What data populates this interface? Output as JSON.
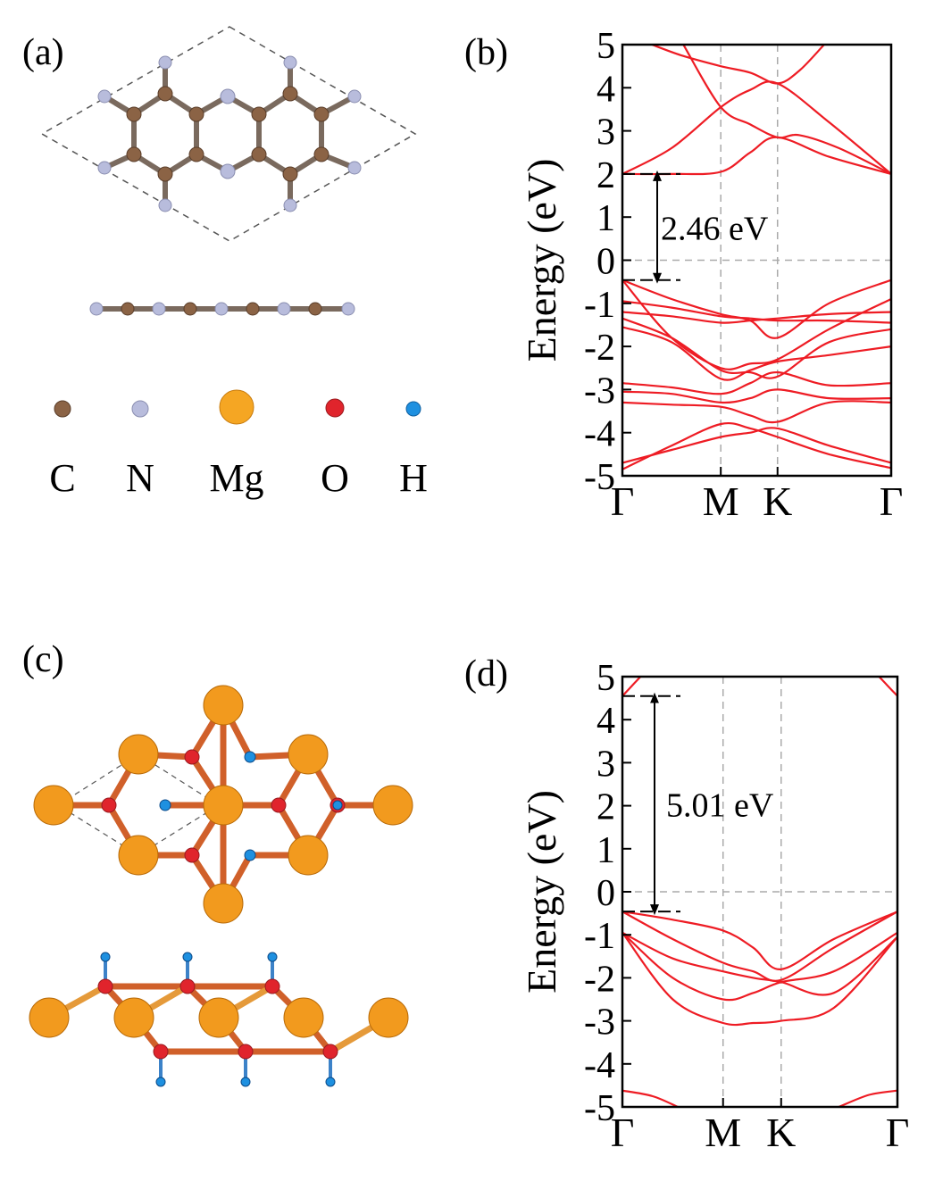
{
  "panels": {
    "a": {
      "label": "(a)"
    },
    "b": {
      "label": "(b)"
    },
    "c": {
      "label": "(c)"
    },
    "d": {
      "label": "(d)"
    }
  },
  "legend": {
    "items": [
      {
        "symbol": "C",
        "color": "#8B6345"
      },
      {
        "symbol": "N",
        "color": "#B8BCDC"
      },
      {
        "symbol": "Mg",
        "color": "#F29A1E"
      },
      {
        "symbol": "O",
        "color": "#E0242C"
      },
      {
        "symbol": "H",
        "color": "#1E90E0"
      }
    ]
  },
  "chart_data": [
    {
      "type": "line",
      "panel": "b",
      "ylabel": "Energy (eV)",
      "ylim": [
        -5,
        5
      ],
      "yticks": [
        "5",
        "4",
        "3",
        "2",
        "1",
        "0",
        "-1",
        "-2",
        "-3",
        "-4",
        "-5"
      ],
      "xticks": [
        "Γ",
        "M",
        "K",
        "Γ"
      ],
      "kpath": [
        0,
        1,
        1.577,
        2.732
      ],
      "bandgap_label": "2.46 eV",
      "bandgap": [
        -0.46,
        2.0
      ],
      "line_color": "#EE1C24",
      "bands": [
        [
          [
            0,
            -4.85
          ],
          [
            0.5,
            -4.3
          ],
          [
            1,
            -3.8
          ],
          [
            1.3,
            -3.9
          ],
          [
            1.577,
            -4.1
          ],
          [
            2.1,
            -4.5
          ],
          [
            2.732,
            -4.82
          ]
        ],
        [
          [
            0,
            -4.7
          ],
          [
            0.5,
            -4.4
          ],
          [
            1,
            -4.1
          ],
          [
            1.3,
            -4.0
          ],
          [
            1.577,
            -3.9
          ],
          [
            2.1,
            -4.3
          ],
          [
            2.732,
            -4.7
          ]
        ],
        [
          [
            0,
            -3.3
          ],
          [
            0.5,
            -3.35
          ],
          [
            1,
            -3.4
          ],
          [
            1.3,
            -3.6
          ],
          [
            1.577,
            -3.75
          ],
          [
            2.1,
            -3.3
          ],
          [
            2.732,
            -3.3
          ]
        ],
        [
          [
            0,
            -3.05
          ],
          [
            0.5,
            -3.1
          ],
          [
            1,
            -3.3
          ],
          [
            1.3,
            -3.2
          ],
          [
            1.577,
            -3.0
          ],
          [
            2.1,
            -3.2
          ],
          [
            2.732,
            -3.2
          ]
        ],
        [
          [
            0,
            -2.85
          ],
          [
            0.5,
            -2.95
          ],
          [
            1,
            -3.1
          ],
          [
            1.3,
            -2.85
          ],
          [
            1.577,
            -2.6
          ],
          [
            2.1,
            -2.9
          ],
          [
            2.732,
            -2.85
          ]
        ],
        [
          [
            0,
            -1.55
          ],
          [
            0.5,
            -1.9
          ],
          [
            1,
            -2.75
          ],
          [
            1.3,
            -2.55
          ],
          [
            1.577,
            -2.35
          ],
          [
            2.1,
            -2.2
          ],
          [
            2.732,
            -2.0
          ]
        ],
        [
          [
            0,
            -1.35
          ],
          [
            0.5,
            -1.8
          ],
          [
            1,
            -2.55
          ],
          [
            1.3,
            -2.6
          ],
          [
            1.577,
            -2.7
          ],
          [
            2.1,
            -1.9
          ],
          [
            2.732,
            -1.6
          ]
        ],
        [
          [
            0,
            -1.2
          ],
          [
            0.5,
            -1.3
          ],
          [
            1,
            -1.45
          ],
          [
            1.3,
            -1.4
          ],
          [
            1.577,
            -1.35
          ],
          [
            2.1,
            -1.25
          ],
          [
            2.732,
            -1.2
          ]
        ],
        [
          [
            0,
            -0.95
          ],
          [
            0.5,
            -1.1
          ],
          [
            1,
            -1.3
          ],
          [
            1.3,
            -1.35
          ],
          [
            1.577,
            -1.4
          ],
          [
            2.1,
            -1.4
          ],
          [
            2.732,
            -1.45
          ]
        ],
        [
          [
            0,
            -0.46
          ],
          [
            0.5,
            -1.8
          ],
          [
            1,
            -2.5
          ],
          [
            1.3,
            -2.4
          ],
          [
            1.577,
            -2.3
          ],
          [
            2.1,
            -1.6
          ],
          [
            2.732,
            -0.9
          ]
        ],
        [
          [
            0,
            -0.46
          ],
          [
            0.5,
            -0.9
          ],
          [
            1,
            -1.25
          ],
          [
            1.3,
            -1.4
          ],
          [
            1.577,
            -1.8
          ],
          [
            2.1,
            -1.0
          ],
          [
            2.732,
            -0.46
          ]
        ],
        [
          [
            0,
            2.0
          ],
          [
            0.5,
            2.0
          ],
          [
            1,
            2.05
          ],
          [
            1.3,
            2.5
          ],
          [
            1.577,
            2.85
          ],
          [
            2.1,
            2.4
          ],
          [
            2.732,
            2.0
          ]
        ],
        [
          [
            0,
            2.0
          ],
          [
            0.5,
            2.6
          ],
          [
            1,
            3.55
          ],
          [
            1.3,
            3.95
          ],
          [
            1.577,
            4.1
          ],
          [
            2.1,
            3.2
          ],
          [
            2.732,
            2.0
          ]
        ],
        [
          [
            0.62,
            5.0
          ],
          [
            1,
            3.55
          ],
          [
            1.3,
            3.15
          ],
          [
            1.577,
            2.85
          ],
          [
            1.8,
            2.9
          ],
          [
            2.2,
            2.6
          ],
          [
            2.732,
            2.0
          ]
        ],
        [
          [
            0.3,
            5.0
          ],
          [
            0.6,
            4.75
          ],
          [
            1,
            4.5
          ],
          [
            1.3,
            4.35
          ],
          [
            1.577,
            4.1
          ],
          [
            1.8,
            4.4
          ],
          [
            2.05,
            5.0
          ]
        ]
      ]
    },
    {
      "type": "line",
      "panel": "d",
      "ylabel": "Energy (eV)",
      "ylim": [
        -5,
        5
      ],
      "yticks": [
        "5",
        "4",
        "3",
        "2",
        "1",
        "0",
        "-1",
        "-2",
        "-3",
        "-4",
        "-5"
      ],
      "xticks": [
        "Γ",
        "M",
        "K",
        "Γ"
      ],
      "kpath": [
        0,
        1,
        1.577,
        2.732
      ],
      "bandgap_label": "5.01 eV",
      "bandgap": [
        -0.46,
        4.55
      ],
      "line_color": "#EE1C24",
      "bands": [
        [
          [
            0,
            -0.46
          ],
          [
            0.5,
            -0.65
          ],
          [
            1,
            -0.9
          ],
          [
            1.3,
            -1.3
          ],
          [
            1.577,
            -1.8
          ],
          [
            2.1,
            -1.1
          ],
          [
            2.732,
            -0.46
          ]
        ],
        [
          [
            0,
            -0.46
          ],
          [
            0.5,
            -1.1
          ],
          [
            1,
            -1.65
          ],
          [
            1.3,
            -1.85
          ],
          [
            1.577,
            -2.05
          ],
          [
            2.1,
            -1.3
          ],
          [
            2.732,
            -0.46
          ]
        ],
        [
          [
            0,
            -0.95
          ],
          [
            0.5,
            -1.55
          ],
          [
            1,
            -1.85
          ],
          [
            1.3,
            -2.0
          ],
          [
            1.577,
            -2.1
          ],
          [
            2.1,
            -2.35
          ],
          [
            2.732,
            -1.05
          ]
        ],
        [
          [
            0,
            -0.95
          ],
          [
            0.5,
            -2.0
          ],
          [
            1,
            -2.5
          ],
          [
            1.3,
            -2.35
          ],
          [
            1.577,
            -2.1
          ],
          [
            2.1,
            -1.85
          ],
          [
            2.732,
            -0.95
          ]
        ],
        [
          [
            0,
            -0.95
          ],
          [
            0.5,
            -2.5
          ],
          [
            1,
            -3.05
          ],
          [
            1.3,
            -3.05
          ],
          [
            1.577,
            -3.0
          ],
          [
            2.1,
            -2.7
          ],
          [
            2.732,
            -1.05
          ]
        ],
        [
          [
            0,
            -4.62
          ],
          [
            0.3,
            -4.75
          ],
          [
            0.55,
            -5.0
          ]
        ],
        [
          [
            2.15,
            -5.0
          ],
          [
            2.45,
            -4.72
          ],
          [
            2.732,
            -4.62
          ]
        ],
        [
          [
            0,
            4.55
          ],
          [
            0.1,
            4.8
          ],
          [
            0.18,
            5.0
          ]
        ],
        [
          [
            2.55,
            5.0
          ],
          [
            2.63,
            4.8
          ],
          [
            2.732,
            4.55
          ]
        ]
      ]
    }
  ]
}
